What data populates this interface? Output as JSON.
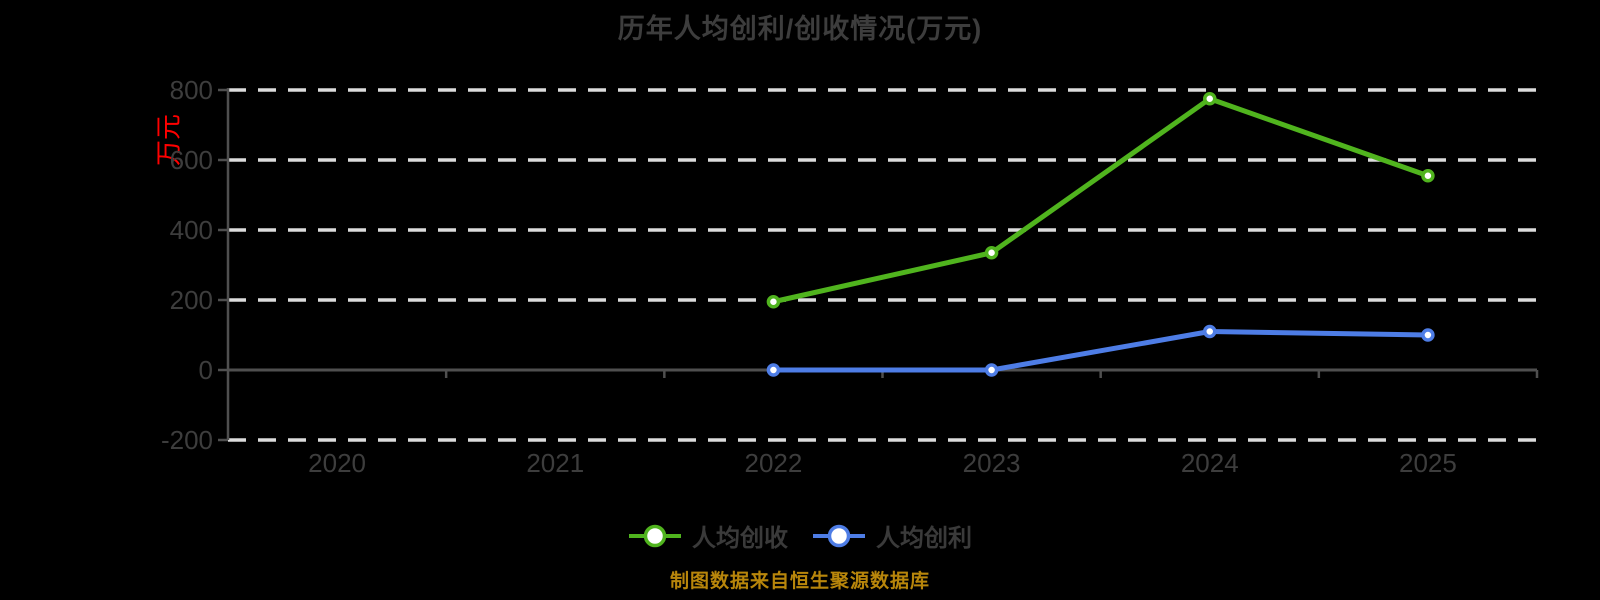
{
  "title": "历年人均创利/创收情况(万元)",
  "source_note": "制图数据来自恒生聚源数据库",
  "colors": {
    "background": "#000000",
    "title_text": "#3d3d3d",
    "axis_label_text": "#3d3d3d",
    "axis_line": "#4f4f4f",
    "gridline": "#dcdcdc",
    "y_axis_name": "#ff0000",
    "legend_text": "#3a3a3a",
    "source_text": "#b8860b",
    "marker_fill": "#ffffff",
    "series_revenue": "#50b41e",
    "series_profit": "#4e7de6"
  },
  "chart_data": {
    "type": "line",
    "title": "历年人均创利/创收情况(万元)",
    "categories": [
      "2020",
      "2021",
      "2022",
      "2023",
      "2024",
      "2025"
    ],
    "series": [
      {
        "key": "per-capita-revenue",
        "name": "人均创收",
        "color": "#50b41e",
        "values": [
          null,
          null,
          195,
          335,
          775,
          555
        ]
      },
      {
        "key": "per-capita-profit",
        "name": "人均创利",
        "color": "#4e7de6",
        "values": [
          null,
          null,
          0,
          0,
          110,
          100
        ]
      }
    ],
    "xlabel": "",
    "ylabel": "万元",
    "ylim": [
      -200,
      800
    ],
    "yticks": [
      800,
      600,
      400,
      200,
      0,
      -200
    ],
    "ytick_interval": 200,
    "grid": "horizontal-dashed",
    "zero_axis_line": "solid",
    "legend_position": "bottom",
    "marker": "circle-white-fill"
  }
}
